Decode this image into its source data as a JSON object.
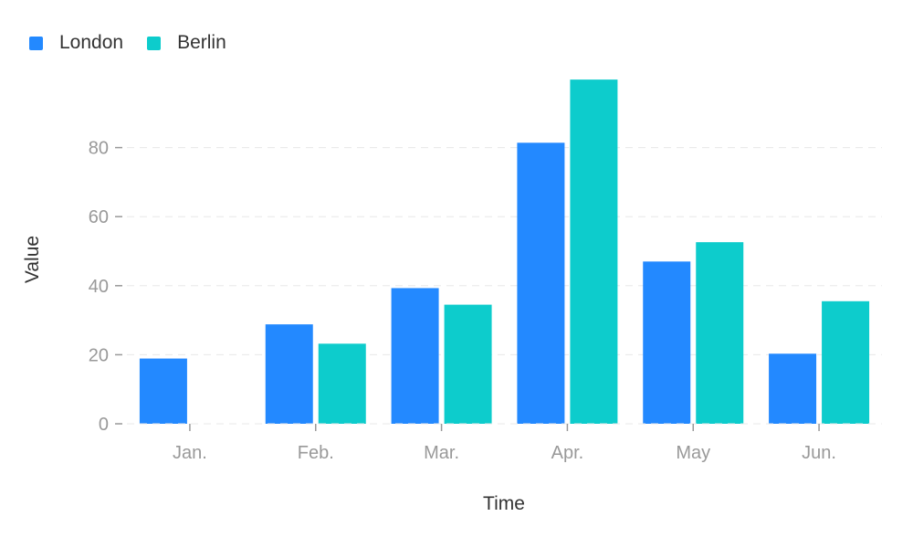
{
  "chart_data": {
    "type": "bar",
    "categories": [
      "Jan.",
      "Feb.",
      "Mar.",
      "Apr.",
      "May",
      "Jun."
    ],
    "series": [
      {
        "name": "London",
        "color": "#2389FF",
        "values": [
          18.9,
          28.8,
          39.3,
          81.4,
          47.0,
          20.3
        ]
      },
      {
        "name": "Berlin",
        "color": "#0DCCCC",
        "values": [
          0,
          23.2,
          34.5,
          99.7,
          52.6,
          35.5
        ]
      }
    ],
    "xlabel": "Time",
    "ylabel": "Value",
    "ylim": [
      0,
      100
    ],
    "yticks": [
      0,
      20,
      40,
      60,
      80
    ],
    "grid": true,
    "legend_position": "top-left"
  }
}
